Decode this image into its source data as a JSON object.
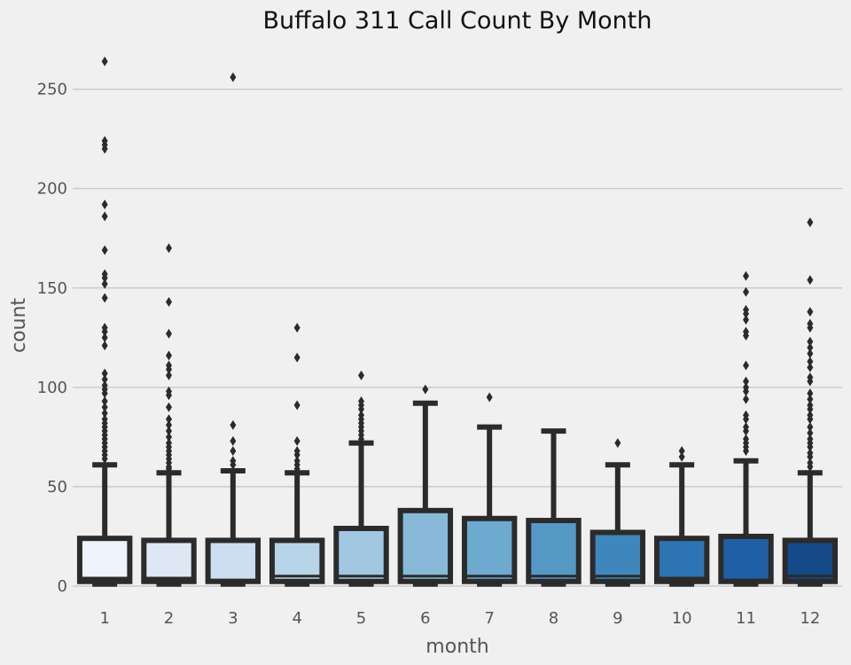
{
  "chart_data": {
    "type": "box",
    "title": "Buffalo 311 Call Count By Month",
    "xlabel": "month",
    "ylabel": "count",
    "ylim": [
      -5,
      275
    ],
    "yticks": [
      0,
      50,
      100,
      150,
      200,
      250
    ],
    "grid": "horizontal",
    "categories": [
      "1",
      "2",
      "3",
      "4",
      "5",
      "6",
      "7",
      "8",
      "9",
      "10",
      "11",
      "12"
    ],
    "boxes": [
      {
        "month": "1",
        "q1": 1,
        "median": 4,
        "q3": 24,
        "whisker_low": 1,
        "whisker_high": 61,
        "color": "#eef4fb",
        "outliers": [
          264,
          224,
          222,
          220,
          192,
          186,
          169,
          157,
          155,
          152,
          145,
          130,
          128,
          125,
          121,
          107,
          104,
          101,
          99,
          97,
          93,
          90,
          87,
          84,
          82,
          80,
          78,
          76,
          74,
          72,
          70,
          68,
          66,
          64
        ]
      },
      {
        "month": "2",
        "q1": 1,
        "median": 4,
        "q3": 23,
        "whisker_low": 1,
        "whisker_high": 57,
        "color": "#dde8f4",
        "outliers": [
          170,
          143,
          127,
          116,
          111,
          109,
          106,
          98,
          96,
          90,
          84,
          81,
          78,
          75,
          72,
          70,
          68,
          66,
          64,
          62,
          60,
          59
        ]
      },
      {
        "month": "3",
        "q1": 1,
        "median": 3,
        "q3": 23,
        "whisker_low": 1,
        "whisker_high": 58,
        "color": "#ccdeef",
        "outliers": [
          256,
          81,
          73,
          68,
          63,
          61
        ]
      },
      {
        "month": "4",
        "q1": 1,
        "median": 5,
        "q3": 23,
        "whisker_low": 1,
        "whisker_high": 57,
        "color": "#b8d4e9",
        "outliers": [
          130,
          115,
          91,
          73,
          68,
          66,
          63,
          61,
          59
        ]
      },
      {
        "month": "5",
        "q1": 1,
        "median": 5,
        "q3": 29,
        "whisker_low": 1,
        "whisker_high": 72,
        "color": "#a2c7e2",
        "outliers": [
          106,
          93,
          91,
          89,
          86,
          84,
          82,
          80,
          78,
          76,
          74
        ]
      },
      {
        "month": "6",
        "q1": 1,
        "median": 5,
        "q3": 38,
        "whisker_low": 1,
        "whisker_high": 92,
        "color": "#88b9d9",
        "outliers": [
          99
        ]
      },
      {
        "month": "7",
        "q1": 1,
        "median": 5,
        "q3": 34,
        "whisker_low": 1,
        "whisker_high": 80,
        "color": "#6daad0",
        "outliers": [
          95
        ]
      },
      {
        "month": "8",
        "q1": 1,
        "median": 5,
        "q3": 33,
        "whisker_low": 1,
        "whisker_high": 78,
        "color": "#559ac6",
        "outliers": []
      },
      {
        "month": "9",
        "q1": 1,
        "median": 5,
        "q3": 27,
        "whisker_low": 1,
        "whisker_high": 61,
        "color": "#3e87bc",
        "outliers": [
          72
        ]
      },
      {
        "month": "10",
        "q1": 1,
        "median": 4,
        "q3": 24,
        "whisker_low": 1,
        "whisker_high": 61,
        "color": "#2d74b2",
        "outliers": [
          68,
          65
        ]
      },
      {
        "month": "11",
        "q1": 1,
        "median": 3,
        "q3": 25,
        "whisker_low": 1,
        "whisker_high": 63,
        "color": "#1f5fa3",
        "outliers": [
          156,
          148,
          139,
          137,
          134,
          128,
          126,
          111,
          103,
          100,
          98,
          94,
          86,
          84,
          80,
          78,
          74,
          72,
          70,
          68
        ]
      },
      {
        "month": "12",
        "q1": 1,
        "median": 5,
        "q3": 23,
        "whisker_low": 1,
        "whisker_high": 57,
        "color": "#154a89",
        "outliers": [
          183,
          154,
          138,
          132,
          130,
          123,
          120,
          117,
          113,
          110,
          105,
          103,
          97,
          94,
          91,
          89,
          86,
          84,
          80,
          77,
          74,
          72,
          70,
          67,
          65,
          62,
          60
        ]
      }
    ]
  }
}
